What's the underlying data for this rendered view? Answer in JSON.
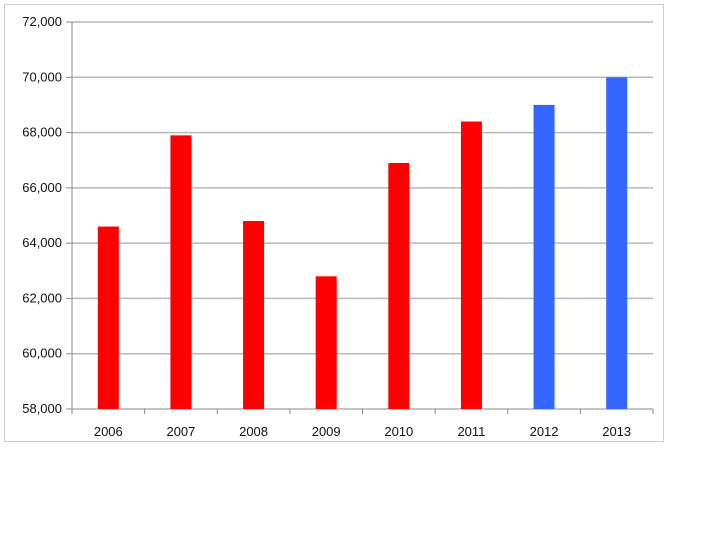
{
  "chart_data": {
    "type": "bar",
    "title": "",
    "xlabel": "",
    "ylabel": "",
    "categories": [
      "2006",
      "2007",
      "2008",
      "2009",
      "2010",
      "2011",
      "2012",
      "2013"
    ],
    "values": [
      64600,
      67900,
      64800,
      62800,
      66900,
      68400,
      69000,
      70000
    ],
    "bar_colors": [
      "#ff0000",
      "#ff0000",
      "#ff0000",
      "#ff0000",
      "#ff0000",
      "#ff0000",
      "#3366ff",
      "#3366ff"
    ],
    "ylim": [
      58000,
      72000
    ],
    "y_ticks": [
      58000,
      60000,
      62000,
      64000,
      66000,
      68000,
      70000,
      72000
    ],
    "y_tick_labels": [
      "58,000",
      "60,000",
      "62,000",
      "64,000",
      "66,000",
      "68,000",
      "70,000",
      "72,000"
    ],
    "grid": true,
    "legend": "none"
  }
}
